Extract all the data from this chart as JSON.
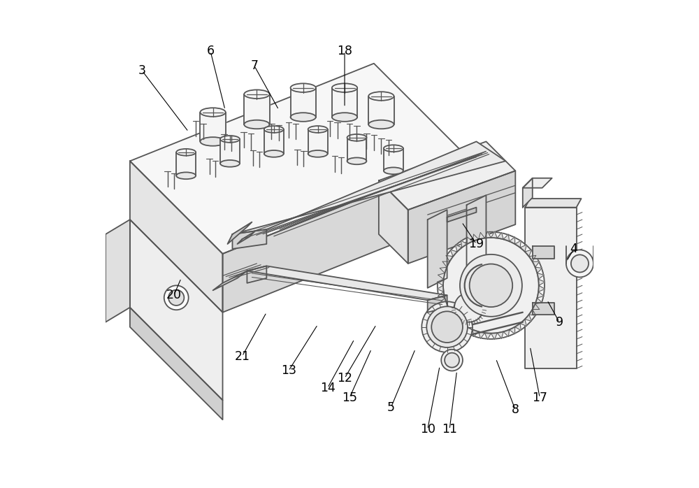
{
  "bg_color": "#ffffff",
  "line_color": "#555555",
  "line_width": 1.3,
  "fig_width": 10.0,
  "fig_height": 6.98,
  "labels_info": {
    "3": [
      0.075,
      0.855,
      0.17,
      0.73
    ],
    "4": [
      0.96,
      0.49,
      0.945,
      0.465
    ],
    "5": [
      0.585,
      0.165,
      0.635,
      0.285
    ],
    "6": [
      0.215,
      0.895,
      0.245,
      0.775
    ],
    "7": [
      0.305,
      0.865,
      0.355,
      0.775
    ],
    "8": [
      0.84,
      0.16,
      0.8,
      0.265
    ],
    "9": [
      0.93,
      0.34,
      0.905,
      0.385
    ],
    "10": [
      0.66,
      0.12,
      0.685,
      0.25
    ],
    "11": [
      0.705,
      0.12,
      0.72,
      0.24
    ],
    "12": [
      0.49,
      0.225,
      0.555,
      0.335
    ],
    "13": [
      0.375,
      0.24,
      0.435,
      0.335
    ],
    "14": [
      0.455,
      0.205,
      0.51,
      0.305
    ],
    "15": [
      0.5,
      0.185,
      0.545,
      0.285
    ],
    "17": [
      0.89,
      0.185,
      0.87,
      0.29
    ],
    "18": [
      0.49,
      0.895,
      0.49,
      0.78
    ],
    "19": [
      0.76,
      0.5,
      0.73,
      0.545
    ],
    "20": [
      0.14,
      0.395,
      0.155,
      0.43
    ],
    "21": [
      0.28,
      0.27,
      0.33,
      0.36
    ]
  }
}
